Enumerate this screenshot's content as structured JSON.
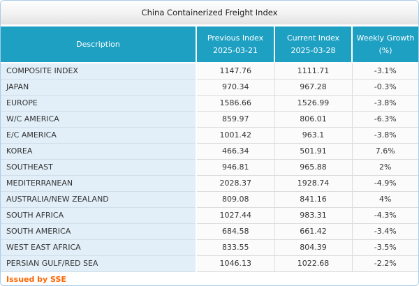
{
  "title_bar": {
    "title": "China Containerized Freight Index"
  },
  "table": {
    "columns": [
      {
        "label": "Description",
        "sub": ""
      },
      {
        "label": "Previous Index",
        "sub": "2025-03-21"
      },
      {
        "label": "Current Index",
        "sub": "2025-03-28"
      },
      {
        "label": "Weekly Growth",
        "sub": "(%)"
      }
    ],
    "rows": [
      {
        "description": "COMPOSITE INDEX",
        "previous": "1147.76",
        "current": "1111.71",
        "growth": "-3.1%"
      },
      {
        "description": "JAPAN",
        "previous": "970.34",
        "current": "967.28",
        "growth": "-0.3%"
      },
      {
        "description": "EUROPE",
        "previous": "1586.66",
        "current": "1526.99",
        "growth": "-3.8%"
      },
      {
        "description": "W/C AMERICA",
        "previous": "859.97",
        "current": "806.01",
        "growth": "-6.3%"
      },
      {
        "description": "E/C AMERICA",
        "previous": "1001.42",
        "current": "963.1",
        "growth": "-3.8%"
      },
      {
        "description": "KOREA",
        "previous": "466.34",
        "current": "501.91",
        "growth": "7.6%"
      },
      {
        "description": "SOUTHEAST",
        "previous": "946.81",
        "current": "965.88",
        "growth": "2%"
      },
      {
        "description": "MEDITERRANEAN",
        "previous": "2028.37",
        "current": "1928.74",
        "growth": "-4.9%"
      },
      {
        "description": "AUSTRALIA/NEW ZEALAND",
        "previous": "809.08",
        "current": "841.16",
        "growth": "4%"
      },
      {
        "description": "SOUTH AFRICA",
        "previous": "1027.44",
        "current": "983.31",
        "growth": "-4.3%"
      },
      {
        "description": "SOUTH AMERICA",
        "previous": "684.58",
        "current": "661.42",
        "growth": "-3.4%"
      },
      {
        "description": "WEST EAST AFRICA",
        "previous": "833.55",
        "current": "804.39",
        "growth": "-3.5%"
      },
      {
        "description": "PERSIAN GULF/RED SEA",
        "previous": "1046.13",
        "current": "1022.68",
        "growth": "-2.2%"
      }
    ]
  },
  "footer": {
    "issued_by": "Issued by SSE"
  },
  "colors": {
    "header_bg": "#1ea0c3",
    "description_cell_bg": "#e2eff8",
    "accent_orange": "#ff6600",
    "border_blue": "#a9cbe8"
  }
}
